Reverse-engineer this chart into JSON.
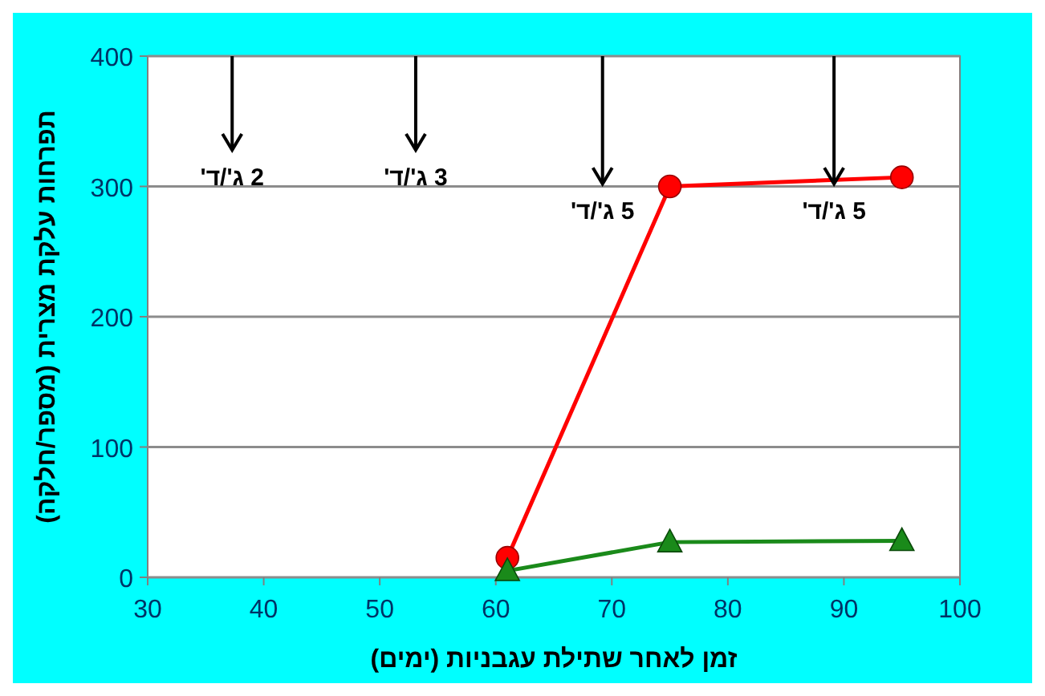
{
  "chart_data": {
    "type": "line",
    "xlabel": "זמן לאחר שתילת עגבניות (ימים)",
    "ylabel": "תפרחות עלקת מצרית (מספר/חלקה)",
    "x": [
      61,
      75,
      95
    ],
    "series": [
      {
        "color": "#ff0000",
        "marker": "circle",
        "values": [
          15,
          300,
          307
        ]
      },
      {
        "color": "#1a8a1a",
        "marker": "triangle",
        "values": [
          5,
          27,
          28
        ]
      }
    ],
    "xlim": [
      30,
      100
    ],
    "xticks": [
      30,
      40,
      50,
      60,
      70,
      80,
      90,
      100
    ],
    "ylim": [
      0,
      400
    ],
    "yticks": [
      0,
      100,
      200,
      300,
      400
    ],
    "grid": "y",
    "annotations": [
      "2 ג'/ד'",
      "3 ג'/ד'",
      "5 ג'/ד'",
      "5 ג'/ד'"
    ]
  }
}
